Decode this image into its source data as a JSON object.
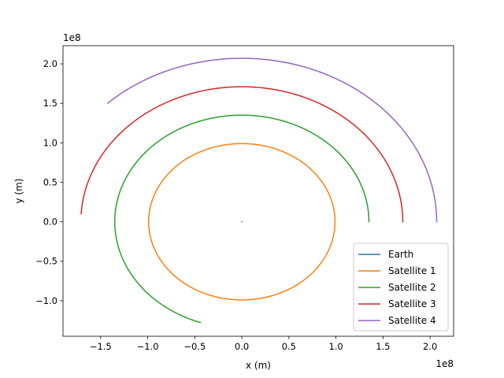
{
  "chart_data": {
    "type": "line",
    "xlabel": "x (m)",
    "ylabel": "y (m)",
    "x_offset_label": "1e8",
    "y_offset_label": "1e8",
    "xlim": [
      -1.9,
      2.25
    ],
    "ylim": [
      -1.45,
      2.23
    ],
    "xticks": [
      -1.5,
      -1.0,
      -0.5,
      0.0,
      0.5,
      1.0,
      1.5,
      2.0
    ],
    "yticks": [
      -1.0,
      -0.5,
      0.0,
      0.5,
      1.0,
      1.5,
      2.0
    ],
    "xtick_labels": [
      "−1.5",
      "−1.0",
      "−0.5",
      "0.0",
      "0.5",
      "1.0",
      "1.5",
      "2.0"
    ],
    "ytick_labels": [
      "−1.0",
      "−0.5",
      "0.0",
      "0.5",
      "1.0",
      "1.5",
      "2.0"
    ],
    "grid": false,
    "legend_position": "lower-right",
    "series": [
      {
        "name": "Earth",
        "color": "#1f77b4",
        "orbit": {
          "radius": 0.0,
          "start_deg": 0,
          "end_deg": 0
        }
      },
      {
        "name": "Satellite 1",
        "color": "#ff7f0e",
        "orbit": {
          "radius": 0.99,
          "start_deg": 0,
          "end_deg": 360
        }
      },
      {
        "name": "Satellite 2",
        "color": "#2ca02c",
        "orbit": {
          "radius": 1.35,
          "start_deg": 0,
          "end_deg": 251
        }
      },
      {
        "name": "Satellite 3",
        "color": "#d62728",
        "orbit": {
          "radius": 1.71,
          "start_deg": 0,
          "end_deg": 176.6
        }
      },
      {
        "name": "Satellite 4",
        "color": "#9467bd",
        "orbit": {
          "radius": 2.07,
          "start_deg": 0,
          "end_deg": 133.5
        }
      }
    ]
  }
}
